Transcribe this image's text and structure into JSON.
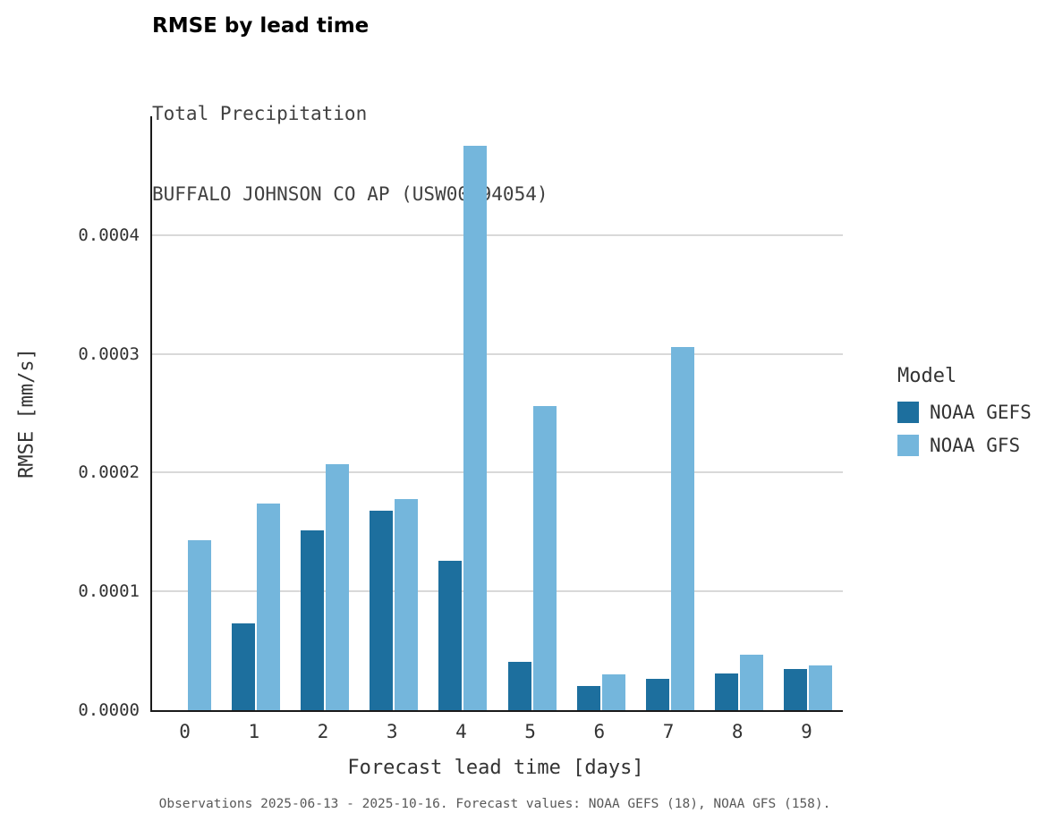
{
  "chart_data": {
    "type": "bar",
    "title": "RMSE by lead time",
    "subtitle1": "Total Precipitation",
    "subtitle2": "BUFFALO JOHNSON CO AP (USW00094054)",
    "xlabel": "Forecast lead time [days]",
    "ylabel": "RMSE [mm/s]",
    "categories": [
      "0",
      "1",
      "2",
      "3",
      "4",
      "5",
      "6",
      "7",
      "8",
      "9"
    ],
    "series": [
      {
        "name": "NOAA GEFS",
        "color": "#1d6f9e",
        "values": [
          0,
          7.3e-05,
          0.000151,
          0.000168,
          0.000126,
          4.1e-05,
          2e-05,
          2.6e-05,
          3.1e-05,
          3.5e-05
        ]
      },
      {
        "name": "NOAA GFS",
        "color": "#74b6dc",
        "values": [
          0.000143,
          0.000174,
          0.000207,
          0.000178,
          0.000475,
          0.000256,
          3e-05,
          0.000306,
          4.7e-05,
          3.8e-05
        ]
      }
    ],
    "ylim": [
      0,
      0.0005
    ],
    "yticks": [
      0,
      0.0001,
      0.0002,
      0.0003,
      0.0004
    ],
    "ytick_labels": [
      "0.0000",
      "0.0001",
      "0.0002",
      "0.0003",
      "0.0004"
    ],
    "grid": true,
    "legend_title": "Model",
    "legend_position": "right"
  },
  "caption": "Observations 2025-06-13 - 2025-10-16. Forecast values: NOAA GEFS (18), NOAA GFS (158)."
}
